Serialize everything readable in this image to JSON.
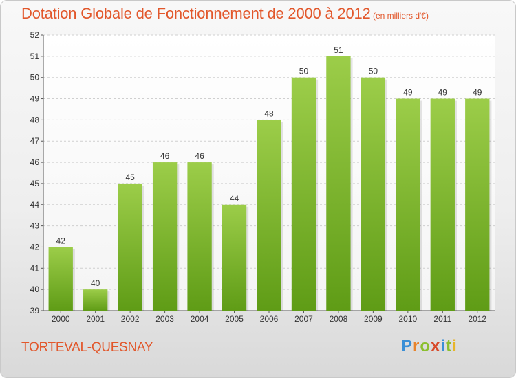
{
  "header": {
    "title": "Dotation Globale de Fonctionnement de 2000 à 2012",
    "subtitle": "(en milliers d'€)"
  },
  "footer": {
    "commune": "TORTEVAL-QUESNAY",
    "logo_letters": [
      "P",
      "r",
      "o",
      "x",
      "i",
      "t",
      "i"
    ],
    "logo_colors": [
      "#3a8fd6",
      "#e8832a",
      "#8bbf2f",
      "#d84a2a",
      "#3a8fd6",
      "#8bbf2f",
      "#e8b52a"
    ]
  },
  "colors": {
    "accent": "#e2572b",
    "bar_top": "#9ccd49",
    "bar_bottom": "#5f9c16",
    "grid": "#cfcfcf"
  },
  "chart_data": {
    "type": "bar",
    "categories": [
      "2000",
      "2001",
      "2002",
      "2003",
      "2004",
      "2005",
      "2006",
      "2007",
      "2008",
      "2009",
      "2010",
      "2011",
      "2012"
    ],
    "values": [
      42,
      40,
      45,
      46,
      46,
      44,
      48,
      50,
      51,
      50,
      49,
      49,
      49
    ],
    "ylim": [
      39,
      52
    ],
    "yticks": [
      39,
      40,
      41,
      42,
      43,
      44,
      45,
      46,
      47,
      48,
      49,
      50,
      51,
      52
    ],
    "grid": "horizontal dashed",
    "xlabel": "",
    "ylabel": ""
  }
}
